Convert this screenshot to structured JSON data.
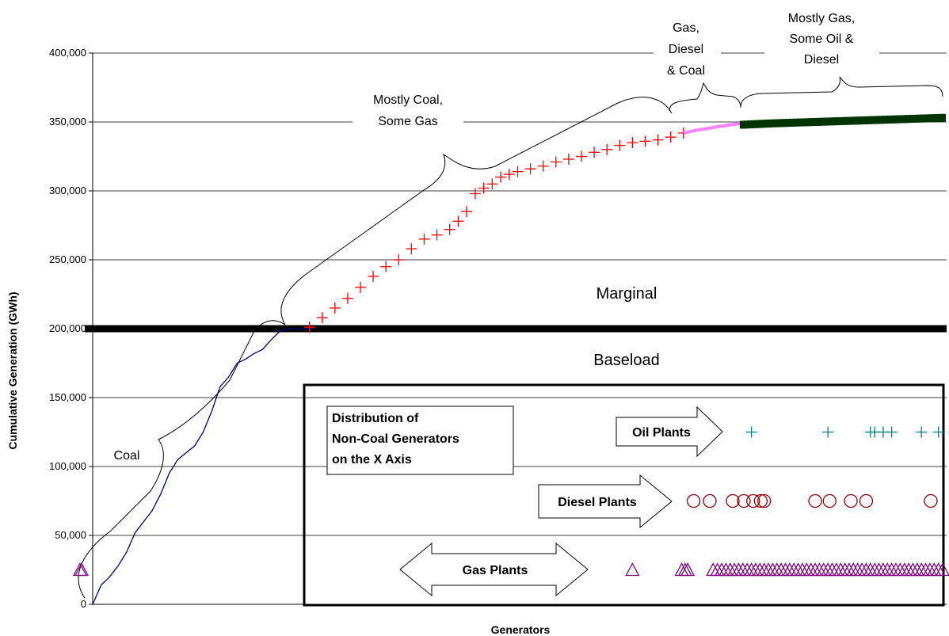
{
  "chart_data": {
    "type": "scatter",
    "xlabel": "Generators",
    "ylabel": "Cumulative Generation (GWh)",
    "ylim": [
      0,
      400000
    ],
    "yticks": [
      0,
      50000,
      100000,
      150000,
      200000,
      250000,
      300000,
      350000,
      400000
    ],
    "ytick_labels": [
      "0",
      "50,000",
      "100,000",
      "150,000",
      "200,000",
      "250,000",
      "300,000",
      "350,000",
      "400,000"
    ],
    "xlim": [
      0,
      1000
    ],
    "grid": "horizontal",
    "threshold": {
      "value": 200000,
      "label_above": "Marginal",
      "label_below": "Baseload"
    },
    "series": [
      {
        "marker": "line",
        "color": "#000080",
        "x": [
          0,
          10,
          20,
          30,
          40,
          50,
          60,
          70,
          80,
          90,
          100,
          110,
          120,
          130,
          140,
          150,
          160,
          170,
          180,
          190,
          200,
          210,
          220,
          230,
          240,
          250,
          260
        ],
        "y": [
          0,
          14000,
          20000,
          28000,
          38000,
          52000,
          60000,
          68000,
          80000,
          95000,
          105000,
          110000,
          115000,
          125000,
          140000,
          158000,
          165000,
          175000,
          178000,
          182000,
          185000,
          192000,
          198000,
          200000,
          200000,
          200000,
          200000
        ]
      },
      {
        "marker": "plus",
        "color": "#ff0000",
        "x": [
          255,
          270,
          285,
          300,
          315,
          330,
          345,
          360,
          375,
          390,
          405,
          420,
          430,
          440,
          450,
          460,
          470,
          480,
          490,
          500,
          515,
          530,
          545,
          560,
          575,
          590,
          605,
          620,
          635,
          650,
          665,
          680,
          695
        ],
        "y": [
          201000,
          208000,
          215000,
          222000,
          230000,
          238000,
          245000,
          250000,
          258000,
          265000,
          268000,
          272000,
          278000,
          285000,
          298000,
          302000,
          305000,
          310000,
          312000,
          314000,
          316000,
          318000,
          321000,
          323000,
          325000,
          328000,
          330000,
          333000,
          335000,
          336000,
          337000,
          339000,
          342000
        ]
      },
      {
        "marker": "line-thick",
        "color": "#ff80ff",
        "x": [
          695,
          710,
          730,
          750,
          765
        ],
        "y": [
          342000,
          344000,
          346000,
          348000,
          349000
        ]
      },
      {
        "marker": "square",
        "color": "#003300",
        "x": [
          765,
          800,
          850,
          900,
          950,
          1000
        ],
        "y": [
          348000,
          349000,
          350000,
          351000,
          352000,
          353000
        ]
      }
    ],
    "non_coal_rows": [
      {
        "label": "Oil Plants",
        "marker": "plus",
        "color": "#008080",
        "y_level": 125000,
        "x": [
          775,
          865,
          915,
          920,
          930,
          940,
          975,
          995
        ]
      },
      {
        "label": "Diesel Plants",
        "marker": "circle",
        "color": "#990000",
        "y_level": 75000,
        "x": [
          707,
          726,
          753,
          766,
          777,
          786,
          790,
          850,
          867,
          892,
          910,
          986
        ]
      },
      {
        "label": "Gas Plants",
        "marker": "triangle",
        "color": "#800080",
        "y_level": 25000,
        "x": [
          -15,
          -13,
          635,
          693,
          697,
          700,
          730,
          735,
          740,
          745,
          750,
          755,
          760,
          765,
          770,
          775,
          780,
          785,
          790,
          795,
          800,
          805,
          810,
          815,
          820,
          825,
          830,
          835,
          840,
          845,
          850,
          855,
          860,
          865,
          870,
          875,
          880,
          885,
          890,
          895,
          900,
          905,
          910,
          915,
          920,
          925,
          930,
          935,
          940,
          945,
          950,
          955,
          960,
          965,
          970,
          975,
          980,
          985,
          990,
          995,
          1000
        ]
      }
    ],
    "annotations": {
      "coal": "Coal",
      "mostly_coal": [
        "Mostly Coal,",
        "Some Gas"
      ],
      "gas_diesel_coal": [
        "Gas,",
        "Diesel",
        "& Coal"
      ],
      "mostly_gas": [
        "Mostly Gas,",
        "Some Oil &",
        "Diesel"
      ],
      "inset_title": [
        "Distribution of",
        "Non-Coal Generators",
        "on the X Axis"
      ]
    }
  }
}
